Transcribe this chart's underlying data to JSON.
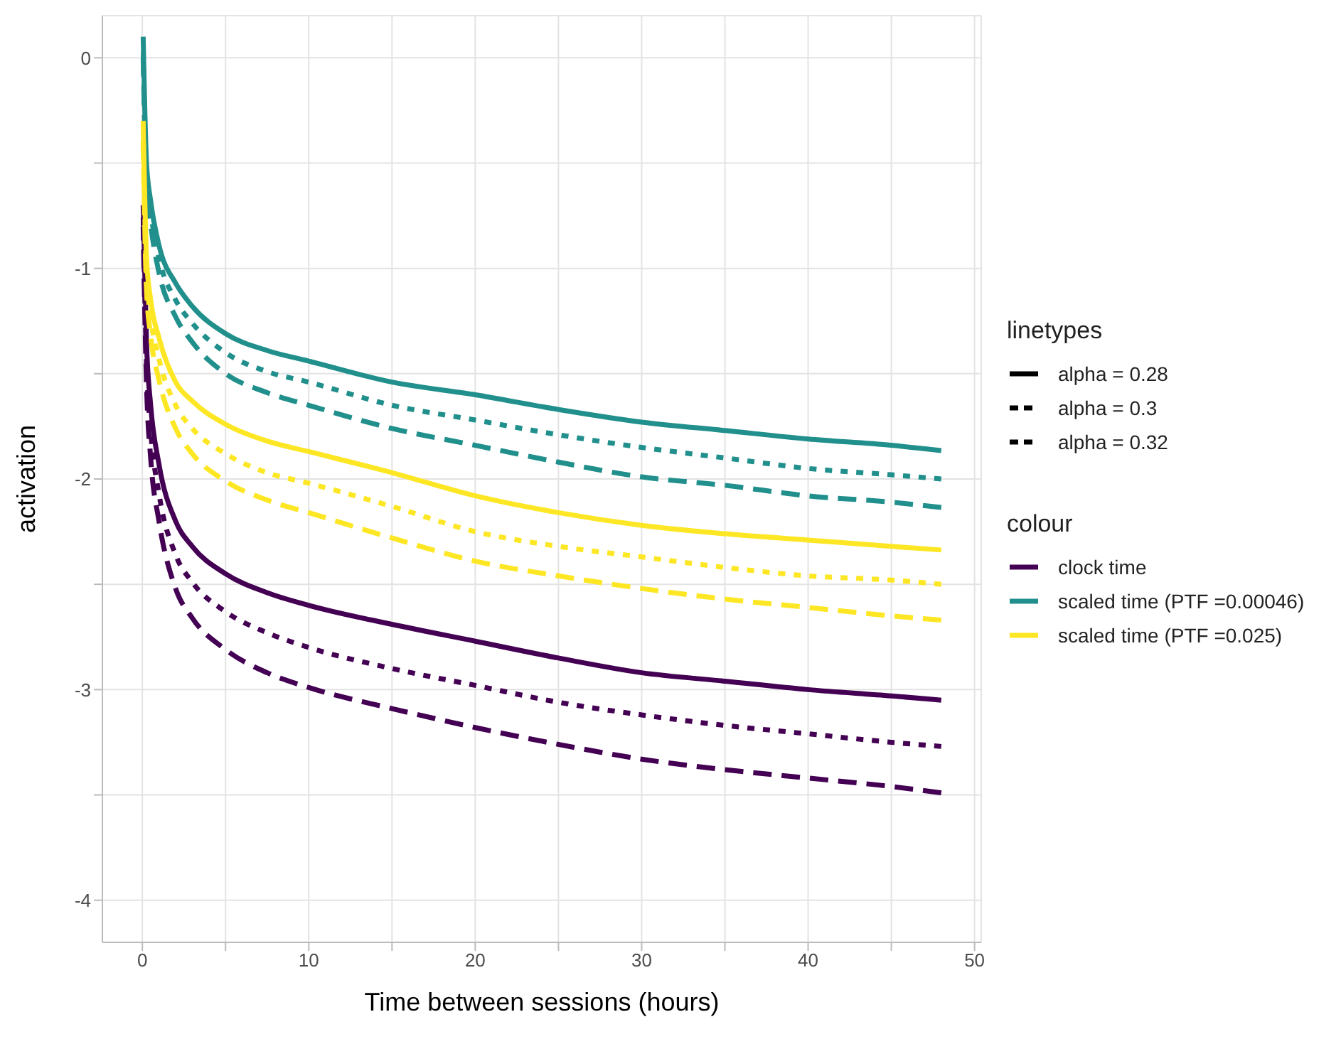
{
  "chart_data": {
    "type": "line",
    "xlabel": "Time between sessions (hours)",
    "ylabel": "activation",
    "legend_title": "colour",
    "legend": "right",
    "grid": true,
    "x": [
      0.05,
      0.25,
      0.5,
      1,
      2,
      3,
      5,
      7.5,
      10,
      15,
      20,
      25,
      30,
      35,
      40,
      45,
      48
    ],
    "xlim": [
      -2.4,
      50.4
    ],
    "xticks": [
      0,
      {
        "value": 5,
        "label": null
      },
      10,
      {
        "value": 15,
        "label": null
      },
      20,
      {
        "value": 25,
        "label": null
      },
      30,
      {
        "value": 35,
        "label": null
      },
      40,
      {
        "value": 45,
        "label": null
      },
      50
    ],
    "ylim": [
      -4.2,
      0.2
    ],
    "yticks": [
      -4,
      {
        "value": -3.5,
        "label": null
      },
      -3,
      {
        "value": -2.5,
        "label": null
      },
      -2,
      {
        "value": -1.5,
        "label": null
      },
      -1,
      {
        "value": -0.5,
        "label": null
      },
      0
    ],
    "annotations": [
      "linetypes",
      "alpha = 0.28",
      "alpha = 0.3",
      "alpha = 0.32"
    ],
    "series": [
      {
        "name": "clock time",
        "color": "#440154",
        "line_style": "solid",
        "values": [
          -0.7,
          -1.35,
          -1.65,
          -1.93,
          -2.2,
          -2.32,
          -2.45,
          -2.54,
          -2.6,
          -2.69,
          -2.77,
          -2.85,
          -2.92,
          -2.96,
          -3.0,
          -3.03,
          -3.05
        ]
      },
      {
        "color": "#440154",
        "line_style": "dotted",
        "values": [
          -0.75,
          -1.45,
          -1.77,
          -2.07,
          -2.36,
          -2.49,
          -2.63,
          -2.73,
          -2.8,
          -2.9,
          -2.98,
          -3.06,
          -3.12,
          -3.17,
          -3.21,
          -3.25,
          -3.27
        ]
      },
      {
        "color": "#440154",
        "line_style": "dashed",
        "values": [
          -0.8,
          -1.55,
          -1.9,
          -2.2,
          -2.52,
          -2.66,
          -2.81,
          -2.92,
          -2.99,
          -3.09,
          -3.18,
          -3.26,
          -3.33,
          -3.38,
          -3.42,
          -3.46,
          -3.49
        ]
      },
      {
        "name": "scaled time (PTF =0.00046)",
        "color": "#21908c",
        "line_style": "solid",
        "values": [
          0.1,
          -0.5,
          -0.68,
          -0.89,
          -1.07,
          -1.18,
          -1.31,
          -1.39,
          -1.44,
          -1.54,
          -1.6,
          -1.67,
          -1.73,
          -1.77,
          -1.81,
          -1.84,
          -1.865
        ]
      },
      {
        "color": "#21908c",
        "line_style": "dotted",
        "values": [
          0.05,
          -0.55,
          -0.73,
          -0.95,
          -1.15,
          -1.26,
          -1.4,
          -1.49,
          -1.54,
          -1.65,
          -1.72,
          -1.79,
          -1.85,
          -1.9,
          -1.95,
          -1.98,
          -2.0
        ]
      },
      {
        "color": "#21908c",
        "line_style": "dashed",
        "values": [
          0.0,
          -0.6,
          -0.79,
          -1.02,
          -1.23,
          -1.35,
          -1.5,
          -1.59,
          -1.65,
          -1.76,
          -1.84,
          -1.92,
          -1.99,
          -2.03,
          -2.08,
          -2.11,
          -2.135
        ]
      },
      {
        "name": "scaled time (PTF =0.025)",
        "color": "#fde725",
        "line_style": "solid",
        "values": [
          -0.3,
          -0.95,
          -1.15,
          -1.33,
          -1.54,
          -1.63,
          -1.74,
          -1.82,
          -1.87,
          -1.97,
          -2.08,
          -2.16,
          -2.22,
          -2.26,
          -2.29,
          -2.32,
          -2.337
        ]
      },
      {
        "color": "#fde725",
        "line_style": "dotted",
        "values": [
          -0.35,
          -1.02,
          -1.23,
          -1.43,
          -1.65,
          -1.76,
          -1.88,
          -1.97,
          -2.02,
          -2.13,
          -2.25,
          -2.32,
          -2.37,
          -2.42,
          -2.46,
          -2.48,
          -2.5
        ]
      },
      {
        "color": "#fde725",
        "line_style": "dashed",
        "values": [
          -0.4,
          -1.1,
          -1.32,
          -1.53,
          -1.76,
          -1.88,
          -2.01,
          -2.1,
          -2.16,
          -2.28,
          -2.39,
          -2.46,
          -2.52,
          -2.57,
          -2.61,
          -2.65,
          -2.67
        ]
      }
    ]
  }
}
